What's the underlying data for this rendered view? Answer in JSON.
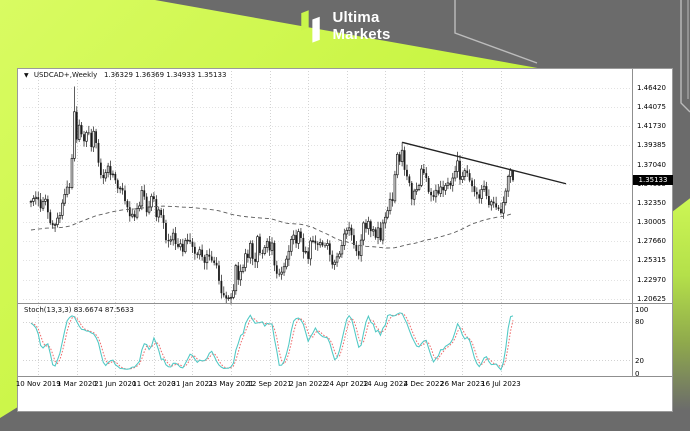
{
  "page": {
    "bg_color": "#6b6b6b",
    "accent_color": "#c9f64b"
  },
  "header": {
    "brand_line1": "Ultima",
    "brand_line2": "Markets"
  },
  "chart": {
    "title": "USDCAD+,Weekly",
    "ohlc_text": "1.36329 1.36369 1.34933 1.35133",
    "price_tag": "1.35133",
    "price_axis": [
      "1.46420",
      "1.44075",
      "1.41730",
      "1.39385",
      "1.37040",
      "1.34695",
      "1.32350",
      "1.30005",
      "1.27660",
      "1.25315",
      "1.22970",
      "1.20625"
    ],
    "stoch_label": "Stoch(13,3,3) 83.6674 87.5633",
    "stoch_axis": [
      "100",
      "80",
      "20",
      "0"
    ],
    "colors": {
      "candle": "#1a1a1a",
      "ma_dashed": "#5a5a5a",
      "trendline": "#222222",
      "stoch_main": "#4fc8c4",
      "stoch_signal": "#ef6a6a",
      "grid": "#c9c9c9",
      "price_tag_bg": "#000000"
    }
  },
  "chart_data": {
    "type": "candlestick+stochastic",
    "symbol": "USDCAD+",
    "timeframe": "Weekly",
    "last_ohlc": {
      "open": 1.36329,
      "high": 1.36369,
      "low": 1.34933,
      "close": 1.35133
    },
    "stoch_values": {
      "main": 83.6674,
      "signal": 87.5633,
      "k": 13,
      "slowing": 3,
      "d": 3,
      "levels": [
        80,
        20
      ]
    },
    "y_axis_range": [
      1.201,
      1.485
    ],
    "price_gridlines": [
      1.4642,
      1.44075,
      1.4173,
      1.39385,
      1.3704,
      1.34695,
      1.3235,
      1.30005,
      1.2766,
      1.25315,
      1.2297,
      1.20625
    ],
    "closes": [
      1.3254,
      1.3289,
      1.3305,
      1.3278,
      1.317,
      1.3254,
      1.3281,
      1.3121,
      1.2988,
      1.2963,
      1.297,
      1.3049,
      1.3082,
      1.3232,
      1.334,
      1.3429,
      1.3422,
      1.378,
      1.4351,
      1.4011,
      1.4187,
      1.4076,
      1.399,
      1.4097,
      1.4094,
      1.392,
      1.4112,
      1.3969,
      1.3728,
      1.3577,
      1.354,
      1.3606,
      1.3686,
      1.3579,
      1.3589,
      1.3513,
      1.3412,
      1.3417,
      1.3388,
      1.3258,
      1.3182,
      1.3073,
      1.3097,
      1.306,
      1.3166,
      1.3198,
      1.3389,
      1.3312,
      1.3122,
      1.3186,
      1.3316,
      1.3282,
      1.3062,
      1.3149,
      1.3086,
      1.299,
      1.278,
      1.2768,
      1.2783,
      1.2865,
      1.2732,
      1.2698,
      1.2734,
      1.2638,
      1.2772,
      1.278,
      1.276,
      1.2697,
      1.2614,
      1.26,
      1.2662,
      1.2575,
      1.2503,
      1.2601,
      1.2578,
      1.253,
      1.2501,
      1.247,
      1.2281,
      1.213,
      1.2104,
      1.2065,
      1.2073,
      1.2078,
      1.216,
      1.2468,
      1.2294,
      1.2397,
      1.2445,
      1.2613,
      1.2562,
      1.2741,
      1.255,
      1.2515,
      1.2822,
      1.2622,
      1.2617,
      1.269,
      1.2765,
      1.2654,
      1.2745,
      1.2471,
      1.2368,
      1.2363,
      1.2388,
      1.2454,
      1.2547,
      1.2643,
      1.2787,
      1.2841,
      1.274,
      1.2884,
      1.2806,
      1.2635,
      1.2642,
      1.255,
      1.277,
      1.2771,
      1.274,
      1.2722,
      1.2752,
      1.2715,
      1.2712,
      1.2739,
      1.2601,
      1.248,
      1.251,
      1.2575,
      1.261,
      1.2715,
      1.2855,
      1.29,
      1.293,
      1.284,
      1.272,
      1.2645,
      1.259,
      1.278,
      1.299,
      1.292,
      1.301,
      1.289,
      1.291,
      1.281,
      1.293,
      1.278,
      1.299,
      1.306,
      1.314,
      1.328,
      1.326,
      1.358,
      1.383,
      1.374,
      1.388,
      1.364,
      1.356,
      1.348,
      1.328,
      1.338,
      1.34,
      1.345,
      1.365,
      1.36,
      1.354,
      1.337,
      1.333,
      1.331,
      1.339,
      1.335,
      1.343,
      1.339,
      1.345,
      1.348,
      1.345,
      1.354,
      1.362,
      1.375,
      1.352,
      1.356,
      1.363,
      1.36,
      1.351,
      1.344,
      1.337,
      1.334,
      1.329,
      1.34,
      1.344,
      1.332,
      1.321,
      1.325,
      1.323,
      1.318,
      1.316,
      1.311,
      1.324,
      1.338,
      1.356,
      1.3633,
      1.3513
    ],
    "wick_overrides": {
      "18": {
        "high": 1.466
      },
      "81": {
        "low": 1.2007
      },
      "154": {
        "high": 1.3977
      },
      "177": {
        "high": 1.3862
      },
      "195": {
        "low": 1.3092
      },
      "200": {
        "high": 1.36369,
        "low": 1.34933
      }
    },
    "ma_period": 100,
    "trendline": {
      "x1_index": 154,
      "y1": 1.3977,
      "x2_index": 222,
      "y2": 1.347
    },
    "date_labels": [
      {
        "i": 3,
        "t": "10 Nov 2019"
      },
      {
        "i": 19,
        "t": "1 Mar 2020"
      },
      {
        "i": 35,
        "t": "21 Jun 2020"
      },
      {
        "i": 51,
        "t": "11 Oct 2020"
      },
      {
        "i": 67,
        "t": "31 Jan 2021"
      },
      {
        "i": 83,
        "t": "23 May 2021"
      },
      {
        "i": 99,
        "t": "12 Sep 2021"
      },
      {
        "i": 115,
        "t": "2 Jan 2022"
      },
      {
        "i": 131,
        "t": "24 Apr 2022"
      },
      {
        "i": 147,
        "t": "14 Aug 2022"
      },
      {
        "i": 163,
        "t": "4 Dec 2022"
      },
      {
        "i": 179,
        "t": "26 Mar 2023"
      },
      {
        "i": 195,
        "t": "16 Jul 2023"
      }
    ]
  }
}
